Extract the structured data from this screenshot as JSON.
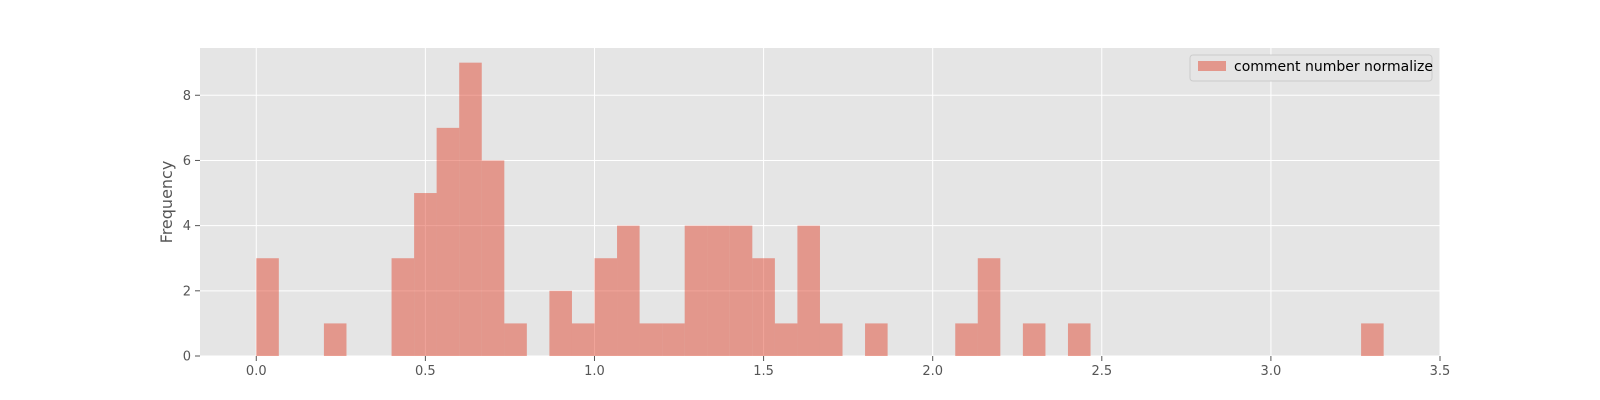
{
  "chart_data": {
    "type": "bar",
    "subtype": "histogram",
    "title": "",
    "xlabel": "",
    "ylabel": "Frequency",
    "xlim": [
      -0.1664,
      3.5
    ],
    "ylim": [
      0,
      9.45
    ],
    "xticks": [
      "0.0",
      "0.5",
      "1.0",
      "1.5",
      "2.0",
      "2.5",
      "3.0",
      "3.5"
    ],
    "xtick_values": [
      0.0,
      0.5,
      1.0,
      1.5,
      2.0,
      2.5,
      3.0,
      3.5
    ],
    "yticks": [
      "0",
      "2",
      "4",
      "6",
      "8"
    ],
    "ytick_values": [
      0,
      2,
      4,
      6,
      8
    ],
    "grid": true,
    "legend_position": "top-right",
    "bin_width": 0.0667,
    "series": [
      {
        "name": "comment number normalize",
        "color": "#E24A33",
        "alpha": 0.5,
        "bins": [
          {
            "start": 0.0,
            "count": 3
          },
          {
            "start": 0.2,
            "count": 1
          },
          {
            "start": 0.4,
            "count": 3
          },
          {
            "start": 0.4667,
            "count": 5
          },
          {
            "start": 0.5333,
            "count": 7
          },
          {
            "start": 0.6,
            "count": 9
          },
          {
            "start": 0.6667,
            "count": 6
          },
          {
            "start": 0.7333,
            "count": 1
          },
          {
            "start": 0.8667,
            "count": 2
          },
          {
            "start": 0.9333,
            "count": 1
          },
          {
            "start": 1.0,
            "count": 3
          },
          {
            "start": 1.0667,
            "count": 4
          },
          {
            "start": 1.1333,
            "count": 1
          },
          {
            "start": 1.2,
            "count": 1
          },
          {
            "start": 1.2667,
            "count": 4
          },
          {
            "start": 1.3333,
            "count": 4
          },
          {
            "start": 1.4,
            "count": 4
          },
          {
            "start": 1.4667,
            "count": 3
          },
          {
            "start": 1.5333,
            "count": 1
          },
          {
            "start": 1.6,
            "count": 4
          },
          {
            "start": 1.6667,
            "count": 1
          },
          {
            "start": 1.8,
            "count": 1
          },
          {
            "start": 2.0667,
            "count": 1
          },
          {
            "start": 2.1333,
            "count": 3
          },
          {
            "start": 2.2667,
            "count": 1
          },
          {
            "start": 2.4,
            "count": 1
          },
          {
            "start": 3.2667,
            "count": 1
          }
        ]
      }
    ]
  },
  "colors": {
    "plot_background": "#E5E5E5",
    "grid": "#FFFFFF",
    "legend_background": "#E5E5E5",
    "legend_border": "#CCCCCC"
  }
}
